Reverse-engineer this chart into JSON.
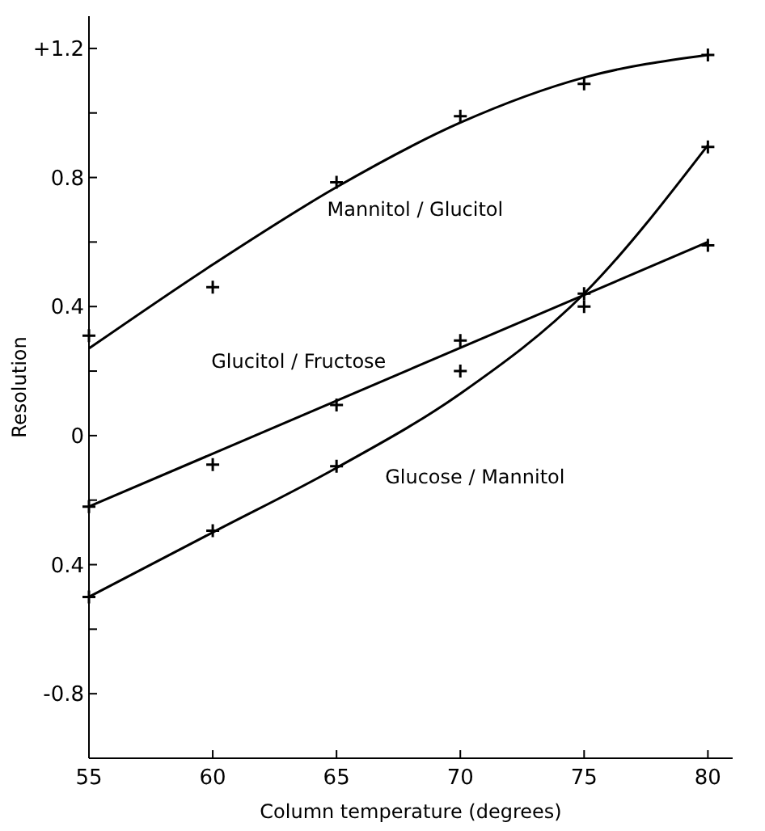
{
  "chart_data": {
    "type": "scatter",
    "xlabel": "Column  temperature (degrees)",
    "ylabel": "Resolution",
    "xlim": [
      55,
      81
    ],
    "xticks": [
      55,
      60,
      65,
      70,
      75,
      80
    ],
    "ylim": [
      -1.0,
      1.3
    ],
    "yticks": [
      {
        "value": 1.2,
        "label": "+1.2"
      },
      {
        "value": 1.0,
        "label": null
      },
      0.8,
      {
        "value": 0.6,
        "label": null
      },
      0.4,
      {
        "value": 0.2,
        "label": null
      },
      0,
      {
        "value": -0.2,
        "label": null
      },
      {
        "value": -0.4,
        "label": "0.4"
      },
      {
        "value": -0.6,
        "label": null
      },
      -0.8
    ],
    "grid": false,
    "series": [
      {
        "color": "#000000",
        "marker": "cross",
        "x": [
          55,
          60,
          65,
          70,
          75,
          80
        ],
        "values": [
          0.31,
          0.46,
          0.785,
          0.99,
          1.09,
          1.18
        ]
      },
      {
        "color": "#000000",
        "marker": "cross",
        "x": [
          55,
          60,
          65,
          70,
          75,
          80
        ],
        "values": [
          -0.22,
          -0.09,
          0.095,
          0.295,
          0.44,
          0.59
        ]
      },
      {
        "color": "#000000",
        "marker": "cross",
        "x": [
          55,
          60,
          65,
          70,
          75,
          80
        ],
        "values": [
          -0.5,
          -0.295,
          -0.095,
          0.2,
          0.4,
          0.895
        ]
      },
      {
        "type": "line",
        "name": "Mannitol / Glucitol",
        "color": "#000000",
        "marker": "none",
        "line_style": "solid",
        "x": [
          55,
          60,
          65,
          70,
          75,
          80
        ],
        "values": [
          0.27,
          0.53,
          0.77,
          0.97,
          1.11,
          1.18
        ]
      },
      {
        "type": "line",
        "name": "Glucitol / Fructose",
        "color": "#000000",
        "marker": "none",
        "line_style": "solid",
        "x": [
          55,
          80
        ],
        "values": [
          -0.22,
          0.6
        ]
      },
      {
        "type": "line",
        "name": "Glucose / Mannitol",
        "color": "#000000",
        "marker": "none",
        "line_style": "solid",
        "x": [
          55,
          60,
          65,
          70,
          75,
          80
        ],
        "values": [
          -0.5,
          -0.3,
          -0.1,
          0.13,
          0.44,
          0.9
        ]
      }
    ]
  }
}
